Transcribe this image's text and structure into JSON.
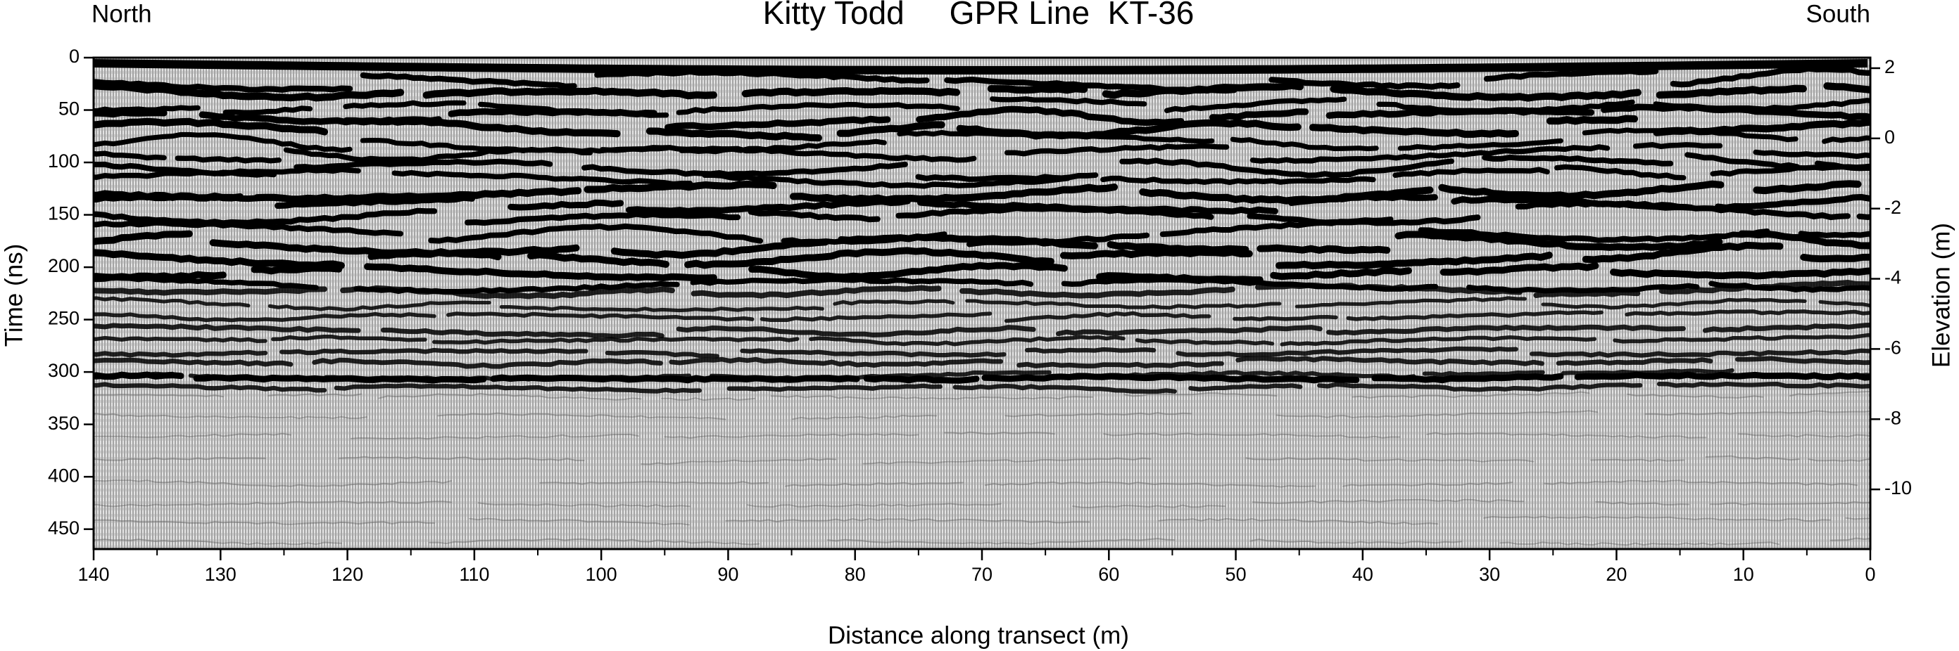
{
  "chart_data": {
    "type": "radargram",
    "title": "Kitty Todd     GPR Line  KT-36",
    "left_label": "North",
    "right_label": "South",
    "x_label": "Distance along transect (m)",
    "y_label": "Time (ns)",
    "y2_label": "Elevation (m)",
    "xlim": [
      140,
      0
    ],
    "xticks": [
      140,
      130,
      120,
      110,
      100,
      90,
      80,
      70,
      60,
      50,
      40,
      30,
      20,
      10,
      0
    ],
    "xminorticks": [
      135,
      125,
      115,
      105,
      95,
      85,
      75,
      65,
      55,
      45,
      35,
      25,
      15,
      5
    ],
    "ylim": [
      469,
      0
    ],
    "yticks": [
      0,
      50,
      100,
      150,
      200,
      250,
      300,
      350,
      400,
      450
    ],
    "y2lim": [
      -11.7,
      2.3
    ],
    "y2ticks": [
      2,
      0,
      -2,
      -4,
      -6,
      -8,
      -10
    ]
  }
}
